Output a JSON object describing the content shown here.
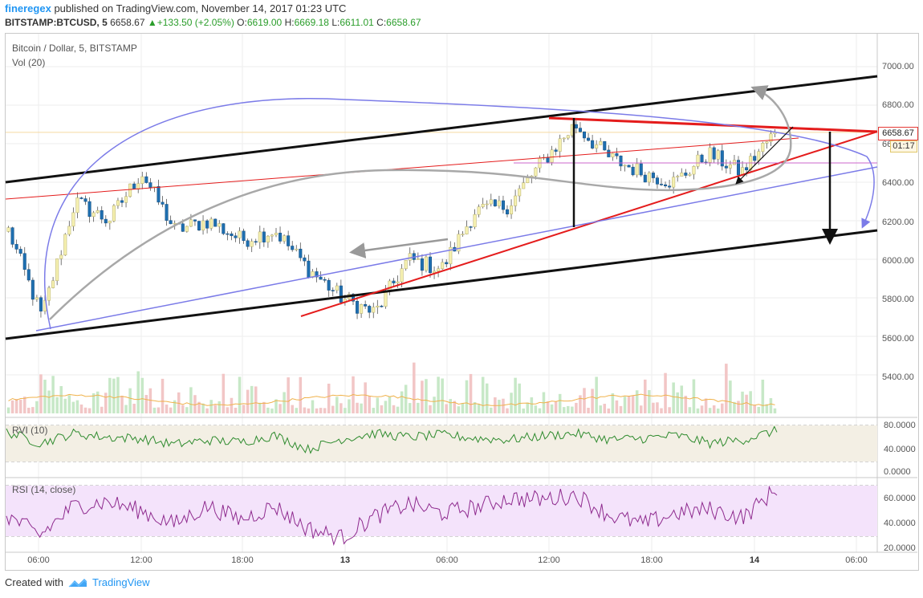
{
  "header": {
    "user": "fineregex",
    "published_text": "published on TradingView.com, November 14, 2017 01:23 UTC",
    "symbol": "BITSTAMP:BTCUSD, 5",
    "last": "6658.67",
    "change": "+133.50 (+2.05%)",
    "o_label": "O:",
    "o_val": "6619.00",
    "h_label": "H:",
    "h_val": "6669.18",
    "l_label": "L:",
    "l_val": "6611.01",
    "c_label": "C:",
    "c_val": "6658.67"
  },
  "main_pane": {
    "title": "Bitcoin / Dollar, 5, BITSTAMP",
    "vol_label": "Vol (20)",
    "price_ticks": [
      "7000.00",
      "6800.00",
      "6400.00",
      "6200.00",
      "6000.00",
      "5800.00",
      "5600.00",
      "5400.00"
    ],
    "price_ticks_partial": [
      "66"
    ],
    "last_price_tag": "6658.67",
    "countdown": "01:17"
  },
  "rvi_pane": {
    "title": "RVI (10)",
    "ticks": [
      "80.0000",
      "40.0000",
      "0.0000"
    ]
  },
  "rsi_pane": {
    "title": "RSI (14, close)",
    "ticks": [
      "60.0000",
      "40.0000",
      "20.0000"
    ]
  },
  "time_axis": [
    "06:00",
    "12:00",
    "18:00",
    "13",
    "06:00",
    "12:00",
    "18:00",
    "14",
    "06:00"
  ],
  "footer": {
    "created_with": "Created with",
    "brand": "TradingView",
    "icon": "tradingview-logo-icon"
  },
  "colors": {
    "up_candle": "#f5f0b0",
    "down_candle": "#1e6fb0",
    "trend_black": "#111111",
    "trend_red": "#e41c1c",
    "curve_blue": "#7b7be8",
    "curve_gray": "#a8a8a8",
    "rvi_line": "#2e8b2e",
    "rsi_line": "#8e2a8e",
    "rsi_band": "#f4e3fb",
    "rvi_band": "#f3efe4",
    "brand": "#2196f3"
  },
  "chart_data": {
    "type": "candlestick",
    "title": "Bitcoin / Dollar, 5, BITSTAMP",
    "x": [
      "11-12 03:00",
      "11-12 05:00",
      "11-12 07:00",
      "11-12 09:00",
      "11-12 11:00",
      "11-12 13:00",
      "11-12 15:00",
      "11-12 17:00",
      "11-12 19:00",
      "11-12 21:00",
      "11-12 23:00",
      "11-13 01:00",
      "11-13 03:00",
      "11-13 05:00",
      "11-13 07:00",
      "11-13 09:00",
      "11-13 11:00",
      "11-13 13:00",
      "11-13 15:00",
      "11-13 17:00",
      "11-13 19:00",
      "11-13 21:00",
      "11-13 23:00",
      "11-14 01:23"
    ],
    "close": [
      6150,
      5700,
      6300,
      6200,
      6450,
      6150,
      6200,
      6100,
      6150,
      5950,
      5800,
      5720,
      6000,
      5950,
      6250,
      6280,
      6500,
      6700,
      6530,
      6450,
      6400,
      6550,
      6450,
      6658.67
    ],
    "ylim": [
      5300,
      7100
    ],
    "series": [
      {
        "values": [
          69,
          50,
          66,
          60,
          58,
          48,
          55,
          52,
          63,
          40,
          57,
          66,
          60,
          64,
          58,
          56,
          62,
          66,
          56,
          58,
          63,
          50,
          56,
          71
        ]
      },
      {
        "values": [
          48,
          30,
          56,
          60,
          52,
          40,
          56,
          44,
          56,
          36,
          28,
          47,
          58,
          50,
          55,
          63,
          62,
          66,
          48,
          40,
          50,
          53,
          46,
          72
        ]
      }
    ],
    "rvi_ylim": [
      0,
      90
    ],
    "rsi_ylim": [
      18,
      80
    ]
  }
}
